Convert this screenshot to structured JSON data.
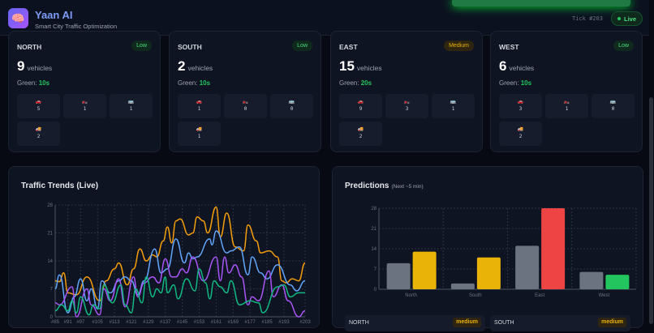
{
  "header": {
    "title": "Yaan AI",
    "subtitle": "Smart City Traffic Optimization",
    "logo_icon": "brain-icon",
    "tick": "Tick #203",
    "live": "Live"
  },
  "vehicle_icons": {
    "car": "🚗",
    "bike": "🏍️",
    "bus": "🚌",
    "truck": "🚚"
  },
  "directions": [
    {
      "name": "NORTH",
      "level": "Low",
      "level_class": "low",
      "count": "9",
      "unit": "vehicles",
      "green_label": "Green:",
      "green": "10s",
      "types": {
        "car": "5",
        "bike": "1",
        "bus": "1",
        "truck": "2"
      }
    },
    {
      "name": "SOUTH",
      "level": "Low",
      "level_class": "low",
      "count": "2",
      "unit": "vehicles",
      "green_label": "Green:",
      "green": "10s",
      "types": {
        "car": "1",
        "bike": "0",
        "bus": "0",
        "truck": "1"
      }
    },
    {
      "name": "EAST",
      "level": "Medium",
      "level_class": "medium",
      "count": "15",
      "unit": "vehicles",
      "green_label": "Green:",
      "green": "20s",
      "types": {
        "car": "9",
        "bike": "3",
        "bus": "1",
        "truck": "2"
      }
    },
    {
      "name": "WEST",
      "level": "Low",
      "level_class": "low",
      "count": "6",
      "unit": "vehicles",
      "green_label": "Green:",
      "green": "10s",
      "types": {
        "car": "3",
        "bike": "1",
        "bus": "0",
        "truck": "2"
      }
    }
  ],
  "trends": {
    "title": "Traffic Trends (Live)"
  },
  "predictions": {
    "title": "Predictions",
    "subtitle": "(Next ~5 min)",
    "cards": [
      {
        "name": "NORTH",
        "level": "medium"
      },
      {
        "name": "SOUTH",
        "level": "medium"
      }
    ]
  },
  "chart_data": [
    {
      "type": "line",
      "title": "Traffic Trends (Live)",
      "ylim": [
        0,
        28
      ],
      "yticks": [
        0,
        7,
        14,
        21,
        28
      ],
      "xlim": [
        85,
        203
      ],
      "xticks": [
        "#85",
        "#91",
        "#97",
        "#105",
        "#113",
        "#121",
        "#129",
        "#137",
        "#145",
        "#153",
        "#161",
        "#169",
        "#177",
        "#185",
        "#193",
        "#203"
      ],
      "xtick_values": [
        85,
        91,
        97,
        105,
        113,
        121,
        129,
        137,
        145,
        153,
        161,
        169,
        177,
        185,
        193,
        203
      ],
      "grid": true,
      "series": [
        {
          "color": "#f59e0b",
          "x": [
            85,
            87,
            89,
            91,
            95,
            100,
            106,
            109,
            113,
            115,
            119,
            122,
            125,
            128,
            131,
            133,
            136,
            138,
            140,
            142,
            144,
            148,
            150,
            152,
            155,
            157,
            161,
            163,
            166,
            170,
            174,
            176,
            180,
            182,
            186,
            190,
            192,
            194,
            197,
            200,
            203
          ],
          "y": [
            9,
            8.8,
            11,
            6,
            5.5,
            10,
            4,
            9,
            12,
            13.5,
            8,
            12,
            17,
            14,
            15.5,
            15,
            19,
            22.5,
            18.5,
            24,
            24.5,
            20.5,
            21,
            25,
            24,
            21,
            27.5,
            20,
            26,
            17.5,
            16.5,
            23,
            19,
            16,
            16.5,
            15,
            9,
            8.5,
            9.5,
            9,
            13.5
          ]
        },
        {
          "color": "#60a5fa",
          "x": [
            85,
            87,
            91,
            94,
            97,
            100,
            102,
            105,
            107,
            111,
            115,
            118,
            121,
            124,
            127,
            132,
            135,
            138,
            142,
            146,
            148,
            150,
            152,
            158,
            159,
            161,
            166,
            168,
            172,
            176,
            178,
            182,
            185,
            190,
            196,
            199,
            203
          ],
          "y": [
            7,
            10.5,
            1,
            5,
            9.5,
            4,
            7,
            2,
            9,
            6,
            9,
            10,
            9,
            5.5,
            9,
            17,
            11,
            12,
            19.5,
            13.5,
            16,
            14.5,
            15,
            19.5,
            18,
            21.5,
            16,
            16.5,
            17.5,
            10.5,
            15,
            11,
            9.5,
            13,
            8,
            6.5,
            9
          ]
        },
        {
          "color": "#a855f7",
          "x": [
            85,
            87,
            93,
            95,
            100,
            102,
            106,
            108,
            111,
            115,
            118,
            122,
            124,
            127,
            131,
            134,
            137,
            140,
            142,
            145,
            147,
            150,
            155,
            161,
            163,
            165,
            167,
            170,
            173,
            176,
            178,
            181,
            186,
            188,
            192,
            195,
            200,
            203
          ],
          "y": [
            3.5,
            3,
            7.5,
            0,
            7,
            3,
            0.5,
            7,
            4,
            9.5,
            2.5,
            10,
            5,
            8.5,
            10,
            8.5,
            14.5,
            10,
            10,
            12,
            11,
            15,
            9,
            15,
            9,
            15,
            11,
            13,
            10,
            3,
            5,
            4,
            11.5,
            5,
            8,
            4,
            0,
            1.5
          ]
        },
        {
          "color": "#10b981",
          "x": [
            85,
            88,
            91,
            93,
            95,
            97,
            101,
            103,
            106,
            108,
            112,
            116,
            118,
            121,
            123,
            126,
            128,
            131,
            133,
            135,
            137,
            138,
            141,
            143,
            147,
            151,
            153,
            156,
            158,
            160,
            163,
            166,
            168,
            172,
            177,
            181,
            183,
            190,
            193,
            196,
            200,
            203
          ],
          "y": [
            1.5,
            3,
            1.5,
            4,
            1,
            5,
            0.5,
            3,
            2,
            8,
            3.5,
            8,
            3,
            1,
            7,
            3.5,
            10,
            5,
            7,
            6,
            10,
            6,
            8,
            4.5,
            9.5,
            6.5,
            12,
            8.5,
            4.5,
            9,
            7.5,
            6,
            9,
            3,
            4,
            3.5,
            1,
            7.5,
            8,
            5,
            6,
            6
          ]
        }
      ]
    },
    {
      "type": "bar",
      "title": "Predictions",
      "subtitle": "(Next ~5 min)",
      "categories": [
        "North",
        "South",
        "East",
        "West"
      ],
      "ylim": [
        0,
        28
      ],
      "yticks": [
        0,
        7,
        14,
        21,
        28
      ],
      "grid": true,
      "series": [
        {
          "values": [
            9,
            2,
            15,
            6
          ],
          "colors": [
            "#6b7280",
            "#6b7280",
            "#6b7280",
            "#6b7280"
          ]
        },
        {
          "values": [
            13,
            11,
            28,
            5
          ],
          "colors": [
            "#eab308",
            "#eab308",
            "#ef4444",
            "#22c55e"
          ]
        }
      ]
    }
  ]
}
